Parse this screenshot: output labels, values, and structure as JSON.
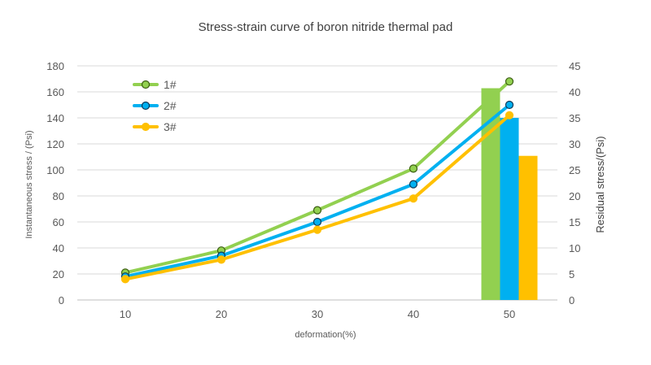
{
  "chart_data": {
    "type": "line+bar",
    "title": "Stress-strain curve of boron nitride thermal pad",
    "xlabel": "deformation(%)",
    "ylabel_left": "Instantaneous stress / (Psi)",
    "ylabel_right": "Residual stress/(Psi)",
    "categories": [
      "10",
      "20",
      "30",
      "40",
      "50"
    ],
    "y_left": {
      "min": 0,
      "max": 180,
      "step": 20,
      "ticks": [
        "0",
        "20",
        "40",
        "60",
        "80",
        "100",
        "120",
        "140",
        "160",
        "180"
      ]
    },
    "y_right": {
      "min": 0,
      "max": 45,
      "step": 5,
      "ticks": [
        "0",
        "5",
        "10",
        "15",
        "20",
        "25",
        "30",
        "35",
        "40",
        "45"
      ]
    },
    "grid": true,
    "legend_position": "top-left",
    "series": [
      {
        "name": "1#",
        "color": "#92d050",
        "values": [
          21,
          38,
          69,
          101,
          168
        ],
        "bar_residual_at_50": 40.7
      },
      {
        "name": "2#",
        "color": "#00b0f0",
        "values": [
          18,
          34,
          60,
          89,
          150
        ],
        "bar_residual_at_50": 35
      },
      {
        "name": "3#",
        "color": "#ffc000",
        "values": [
          16,
          31,
          54,
          78,
          142
        ],
        "bar_residual_at_50": 27.7
      }
    ]
  }
}
